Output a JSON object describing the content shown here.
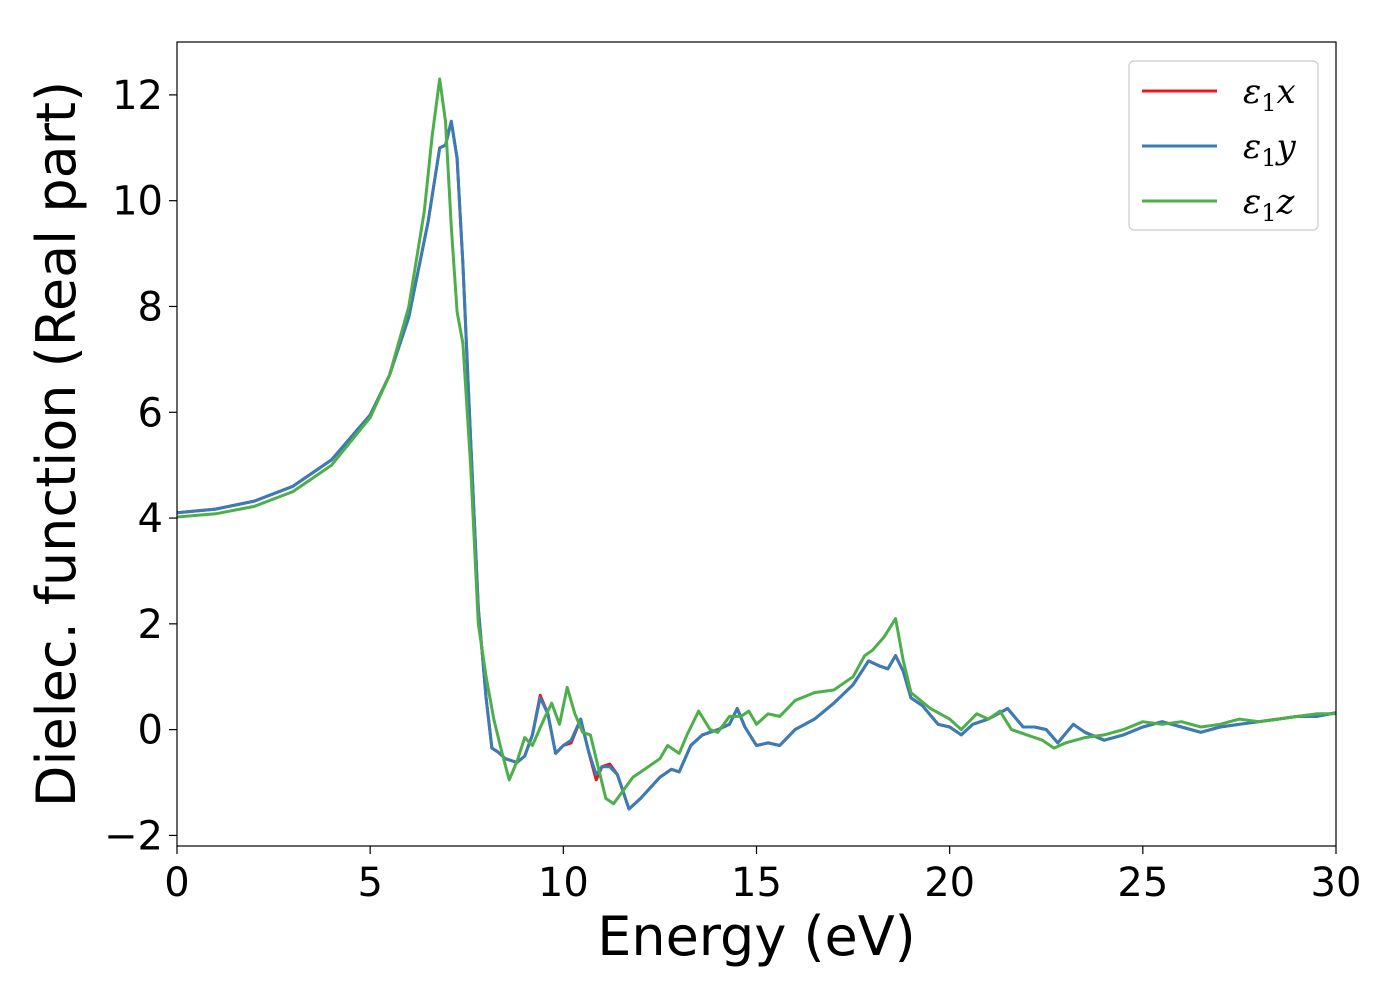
{
  "chart_data": {
    "type": "line",
    "xlabel": "Energy (eV)",
    "ylabel": "Dielec. function (Real part)",
    "xlim": [
      0,
      30
    ],
    "ylim": [
      -2.2,
      13
    ],
    "x_ticks": [
      {
        "value": 0,
        "label": "0"
      },
      {
        "value": 5,
        "label": "5"
      },
      {
        "value": 10,
        "label": "10"
      },
      {
        "value": 15,
        "label": "15"
      },
      {
        "value": 20,
        "label": "20"
      },
      {
        "value": 25,
        "label": "25"
      },
      {
        "value": 30,
        "label": "30"
      }
    ],
    "y_ticks": [
      {
        "value": -2,
        "label": "−2"
      },
      {
        "value": 0,
        "label": "0"
      },
      {
        "value": 2,
        "label": "2"
      },
      {
        "value": 4,
        "label": "4"
      },
      {
        "value": 6,
        "label": "6"
      },
      {
        "value": 8,
        "label": "8"
      },
      {
        "value": 10,
        "label": "10"
      },
      {
        "value": 12,
        "label": "12"
      }
    ],
    "grid": false,
    "legend_position": "top-right",
    "series": [
      {
        "name": "ε1x",
        "legend_symbol": "ε",
        "legend_sub": "1",
        "legend_var": "x",
        "color": "#e41a1c",
        "points": [
          [
            0,
            4.1
          ],
          [
            1,
            4.17
          ],
          [
            2,
            4.32
          ],
          [
            3,
            4.6
          ],
          [
            4,
            5.1
          ],
          [
            5,
            5.95
          ],
          [
            5.5,
            6.7
          ],
          [
            6,
            7.8
          ],
          [
            6.5,
            9.6
          ],
          [
            6.8,
            11.0
          ],
          [
            6.95,
            11.05
          ],
          [
            7.1,
            11.5
          ],
          [
            7.25,
            10.8
          ],
          [
            7.4,
            8.8
          ],
          [
            7.6,
            5.5
          ],
          [
            7.8,
            2.3
          ],
          [
            8.0,
            0.6
          ],
          [
            8.15,
            -0.35
          ],
          [
            8.3,
            -0.42
          ],
          [
            8.5,
            -0.55
          ],
          [
            8.8,
            -0.62
          ],
          [
            9.0,
            -0.5
          ],
          [
            9.2,
            -0.1
          ],
          [
            9.4,
            0.65
          ],
          [
            9.6,
            0.3
          ],
          [
            9.8,
            -0.45
          ],
          [
            10.0,
            -0.3
          ],
          [
            10.2,
            -0.25
          ],
          [
            10.45,
            0.2
          ],
          [
            10.65,
            -0.4
          ],
          [
            10.85,
            -0.95
          ],
          [
            11.0,
            -0.7
          ],
          [
            11.2,
            -0.65
          ],
          [
            11.4,
            -0.85
          ],
          [
            11.7,
            -1.5
          ],
          [
            12.0,
            -1.3
          ],
          [
            12.5,
            -0.9
          ],
          [
            12.8,
            -0.75
          ],
          [
            13.0,
            -0.8
          ],
          [
            13.3,
            -0.3
          ],
          [
            13.6,
            -0.1
          ],
          [
            14.0,
            0.0
          ],
          [
            14.3,
            0.1
          ],
          [
            14.5,
            0.4
          ],
          [
            14.7,
            0.05
          ],
          [
            15.0,
            -0.3
          ],
          [
            15.3,
            -0.25
          ],
          [
            15.6,
            -0.3
          ],
          [
            16.0,
            0.0
          ],
          [
            16.5,
            0.2
          ],
          [
            17.0,
            0.5
          ],
          [
            17.5,
            0.85
          ],
          [
            17.9,
            1.3
          ],
          [
            18.2,
            1.2
          ],
          [
            18.4,
            1.15
          ],
          [
            18.6,
            1.4
          ],
          [
            18.8,
            1.1
          ],
          [
            19.0,
            0.6
          ],
          [
            19.3,
            0.45
          ],
          [
            19.7,
            0.1
          ],
          [
            20.0,
            0.05
          ],
          [
            20.3,
            -0.1
          ],
          [
            20.6,
            0.1
          ],
          [
            21.0,
            0.2
          ],
          [
            21.5,
            0.4
          ],
          [
            21.9,
            0.05
          ],
          [
            22.2,
            0.05
          ],
          [
            22.5,
            0.0
          ],
          [
            22.8,
            -0.25
          ],
          [
            23.2,
            0.1
          ],
          [
            23.5,
            -0.05
          ],
          [
            24.0,
            -0.2
          ],
          [
            24.5,
            -0.1
          ],
          [
            25.0,
            0.05
          ],
          [
            25.5,
            0.15
          ],
          [
            26.0,
            0.05
          ],
          [
            26.5,
            -0.05
          ],
          [
            27.0,
            0.05
          ],
          [
            27.5,
            0.1
          ],
          [
            28.0,
            0.15
          ],
          [
            28.5,
            0.2
          ],
          [
            29.0,
            0.25
          ],
          [
            29.5,
            0.25
          ],
          [
            30.0,
            0.32
          ]
        ]
      },
      {
        "name": "ε1y",
        "legend_symbol": "ε",
        "legend_sub": "1",
        "legend_var": "y",
        "color": "#377eb8",
        "points": [
          [
            0,
            4.1
          ],
          [
            1,
            4.17
          ],
          [
            2,
            4.32
          ],
          [
            3,
            4.6
          ],
          [
            4,
            5.1
          ],
          [
            5,
            5.95
          ],
          [
            5.5,
            6.7
          ],
          [
            6,
            7.8
          ],
          [
            6.5,
            9.6
          ],
          [
            6.8,
            11.0
          ],
          [
            6.95,
            11.05
          ],
          [
            7.1,
            11.5
          ],
          [
            7.25,
            10.8
          ],
          [
            7.4,
            8.8
          ],
          [
            7.6,
            5.5
          ],
          [
            7.8,
            2.3
          ],
          [
            8.0,
            0.6
          ],
          [
            8.15,
            -0.35
          ],
          [
            8.3,
            -0.42
          ],
          [
            8.5,
            -0.55
          ],
          [
            8.8,
            -0.62
          ],
          [
            9.0,
            -0.5
          ],
          [
            9.2,
            -0.1
          ],
          [
            9.4,
            0.6
          ],
          [
            9.6,
            0.3
          ],
          [
            9.8,
            -0.45
          ],
          [
            10.0,
            -0.3
          ],
          [
            10.2,
            -0.2
          ],
          [
            10.45,
            0.2
          ],
          [
            10.65,
            -0.4
          ],
          [
            10.85,
            -0.85
          ],
          [
            11.0,
            -0.7
          ],
          [
            11.2,
            -0.7
          ],
          [
            11.4,
            -0.85
          ],
          [
            11.7,
            -1.5
          ],
          [
            12.0,
            -1.3
          ],
          [
            12.5,
            -0.9
          ],
          [
            12.8,
            -0.75
          ],
          [
            13.0,
            -0.8
          ],
          [
            13.3,
            -0.3
          ],
          [
            13.6,
            -0.1
          ],
          [
            14.0,
            0.0
          ],
          [
            14.3,
            0.1
          ],
          [
            14.5,
            0.4
          ],
          [
            14.7,
            0.05
          ],
          [
            15.0,
            -0.3
          ],
          [
            15.3,
            -0.25
          ],
          [
            15.6,
            -0.3
          ],
          [
            16.0,
            0.0
          ],
          [
            16.5,
            0.2
          ],
          [
            17.0,
            0.5
          ],
          [
            17.5,
            0.85
          ],
          [
            17.9,
            1.3
          ],
          [
            18.2,
            1.2
          ],
          [
            18.4,
            1.15
          ],
          [
            18.6,
            1.4
          ],
          [
            18.8,
            1.1
          ],
          [
            19.0,
            0.6
          ],
          [
            19.3,
            0.45
          ],
          [
            19.7,
            0.1
          ],
          [
            20.0,
            0.05
          ],
          [
            20.3,
            -0.1
          ],
          [
            20.6,
            0.1
          ],
          [
            21.0,
            0.2
          ],
          [
            21.5,
            0.4
          ],
          [
            21.9,
            0.05
          ],
          [
            22.2,
            0.05
          ],
          [
            22.5,
            0.0
          ],
          [
            22.8,
            -0.25
          ],
          [
            23.2,
            0.1
          ],
          [
            23.5,
            -0.05
          ],
          [
            24.0,
            -0.2
          ],
          [
            24.5,
            -0.1
          ],
          [
            25.0,
            0.05
          ],
          [
            25.5,
            0.15
          ],
          [
            26.0,
            0.05
          ],
          [
            26.5,
            -0.05
          ],
          [
            27.0,
            0.05
          ],
          [
            27.5,
            0.1
          ],
          [
            28.0,
            0.15
          ],
          [
            28.5,
            0.2
          ],
          [
            29.0,
            0.25
          ],
          [
            29.5,
            0.25
          ],
          [
            30.0,
            0.32
          ]
        ]
      },
      {
        "name": "ε1z",
        "legend_symbol": "ε",
        "legend_sub": "1",
        "legend_var": "z",
        "color": "#4daf4a",
        "points": [
          [
            0,
            4.02
          ],
          [
            1,
            4.08
          ],
          [
            2,
            4.22
          ],
          [
            3,
            4.5
          ],
          [
            4,
            5.0
          ],
          [
            5,
            5.9
          ],
          [
            5.5,
            6.7
          ],
          [
            6,
            8.0
          ],
          [
            6.4,
            9.8
          ],
          [
            6.6,
            11.2
          ],
          [
            6.8,
            12.3
          ],
          [
            6.95,
            11.5
          ],
          [
            7.1,
            9.5
          ],
          [
            7.25,
            7.9
          ],
          [
            7.4,
            7.3
          ],
          [
            7.6,
            5.0
          ],
          [
            7.8,
            2.0
          ],
          [
            8.0,
            1.0
          ],
          [
            8.2,
            0.2
          ],
          [
            8.4,
            -0.4
          ],
          [
            8.6,
            -0.95
          ],
          [
            8.8,
            -0.6
          ],
          [
            9.0,
            -0.15
          ],
          [
            9.2,
            -0.3
          ],
          [
            9.5,
            0.2
          ],
          [
            9.7,
            0.5
          ],
          [
            9.9,
            0.1
          ],
          [
            10.1,
            0.8
          ],
          [
            10.3,
            0.3
          ],
          [
            10.5,
            -0.05
          ],
          [
            10.7,
            -0.1
          ],
          [
            10.9,
            -0.7
          ],
          [
            11.1,
            -1.3
          ],
          [
            11.3,
            -1.4
          ],
          [
            11.5,
            -1.2
          ],
          [
            11.8,
            -0.9
          ],
          [
            12.2,
            -0.7
          ],
          [
            12.5,
            -0.55
          ],
          [
            12.7,
            -0.3
          ],
          [
            13.0,
            -0.45
          ],
          [
            13.2,
            -0.1
          ],
          [
            13.5,
            0.35
          ],
          [
            13.8,
            0.0
          ],
          [
            14.0,
            -0.05
          ],
          [
            14.3,
            0.25
          ],
          [
            14.6,
            0.25
          ],
          [
            14.8,
            0.35
          ],
          [
            15.0,
            0.1
          ],
          [
            15.3,
            0.3
          ],
          [
            15.6,
            0.25
          ],
          [
            16.0,
            0.55
          ],
          [
            16.5,
            0.7
          ],
          [
            17.0,
            0.75
          ],
          [
            17.5,
            1.0
          ],
          [
            17.8,
            1.4
          ],
          [
            18.0,
            1.5
          ],
          [
            18.3,
            1.75
          ],
          [
            18.6,
            2.1
          ],
          [
            18.8,
            1.3
          ],
          [
            19.0,
            0.7
          ],
          [
            19.5,
            0.4
          ],
          [
            20.0,
            0.2
          ],
          [
            20.3,
            0.0
          ],
          [
            20.7,
            0.3
          ],
          [
            21.0,
            0.2
          ],
          [
            21.3,
            0.35
          ],
          [
            21.6,
            0.0
          ],
          [
            22.0,
            -0.1
          ],
          [
            22.4,
            -0.2
          ],
          [
            22.7,
            -0.35
          ],
          [
            23.0,
            -0.25
          ],
          [
            23.5,
            -0.15
          ],
          [
            24.0,
            -0.1
          ],
          [
            24.5,
            0.0
          ],
          [
            25.0,
            0.15
          ],
          [
            25.5,
            0.1
          ],
          [
            26.0,
            0.15
          ],
          [
            26.5,
            0.05
          ],
          [
            27.0,
            0.1
          ],
          [
            27.5,
            0.2
          ],
          [
            28.0,
            0.15
          ],
          [
            28.5,
            0.2
          ],
          [
            29.0,
            0.25
          ],
          [
            29.5,
            0.3
          ],
          [
            30.0,
            0.3
          ]
        ]
      }
    ]
  }
}
